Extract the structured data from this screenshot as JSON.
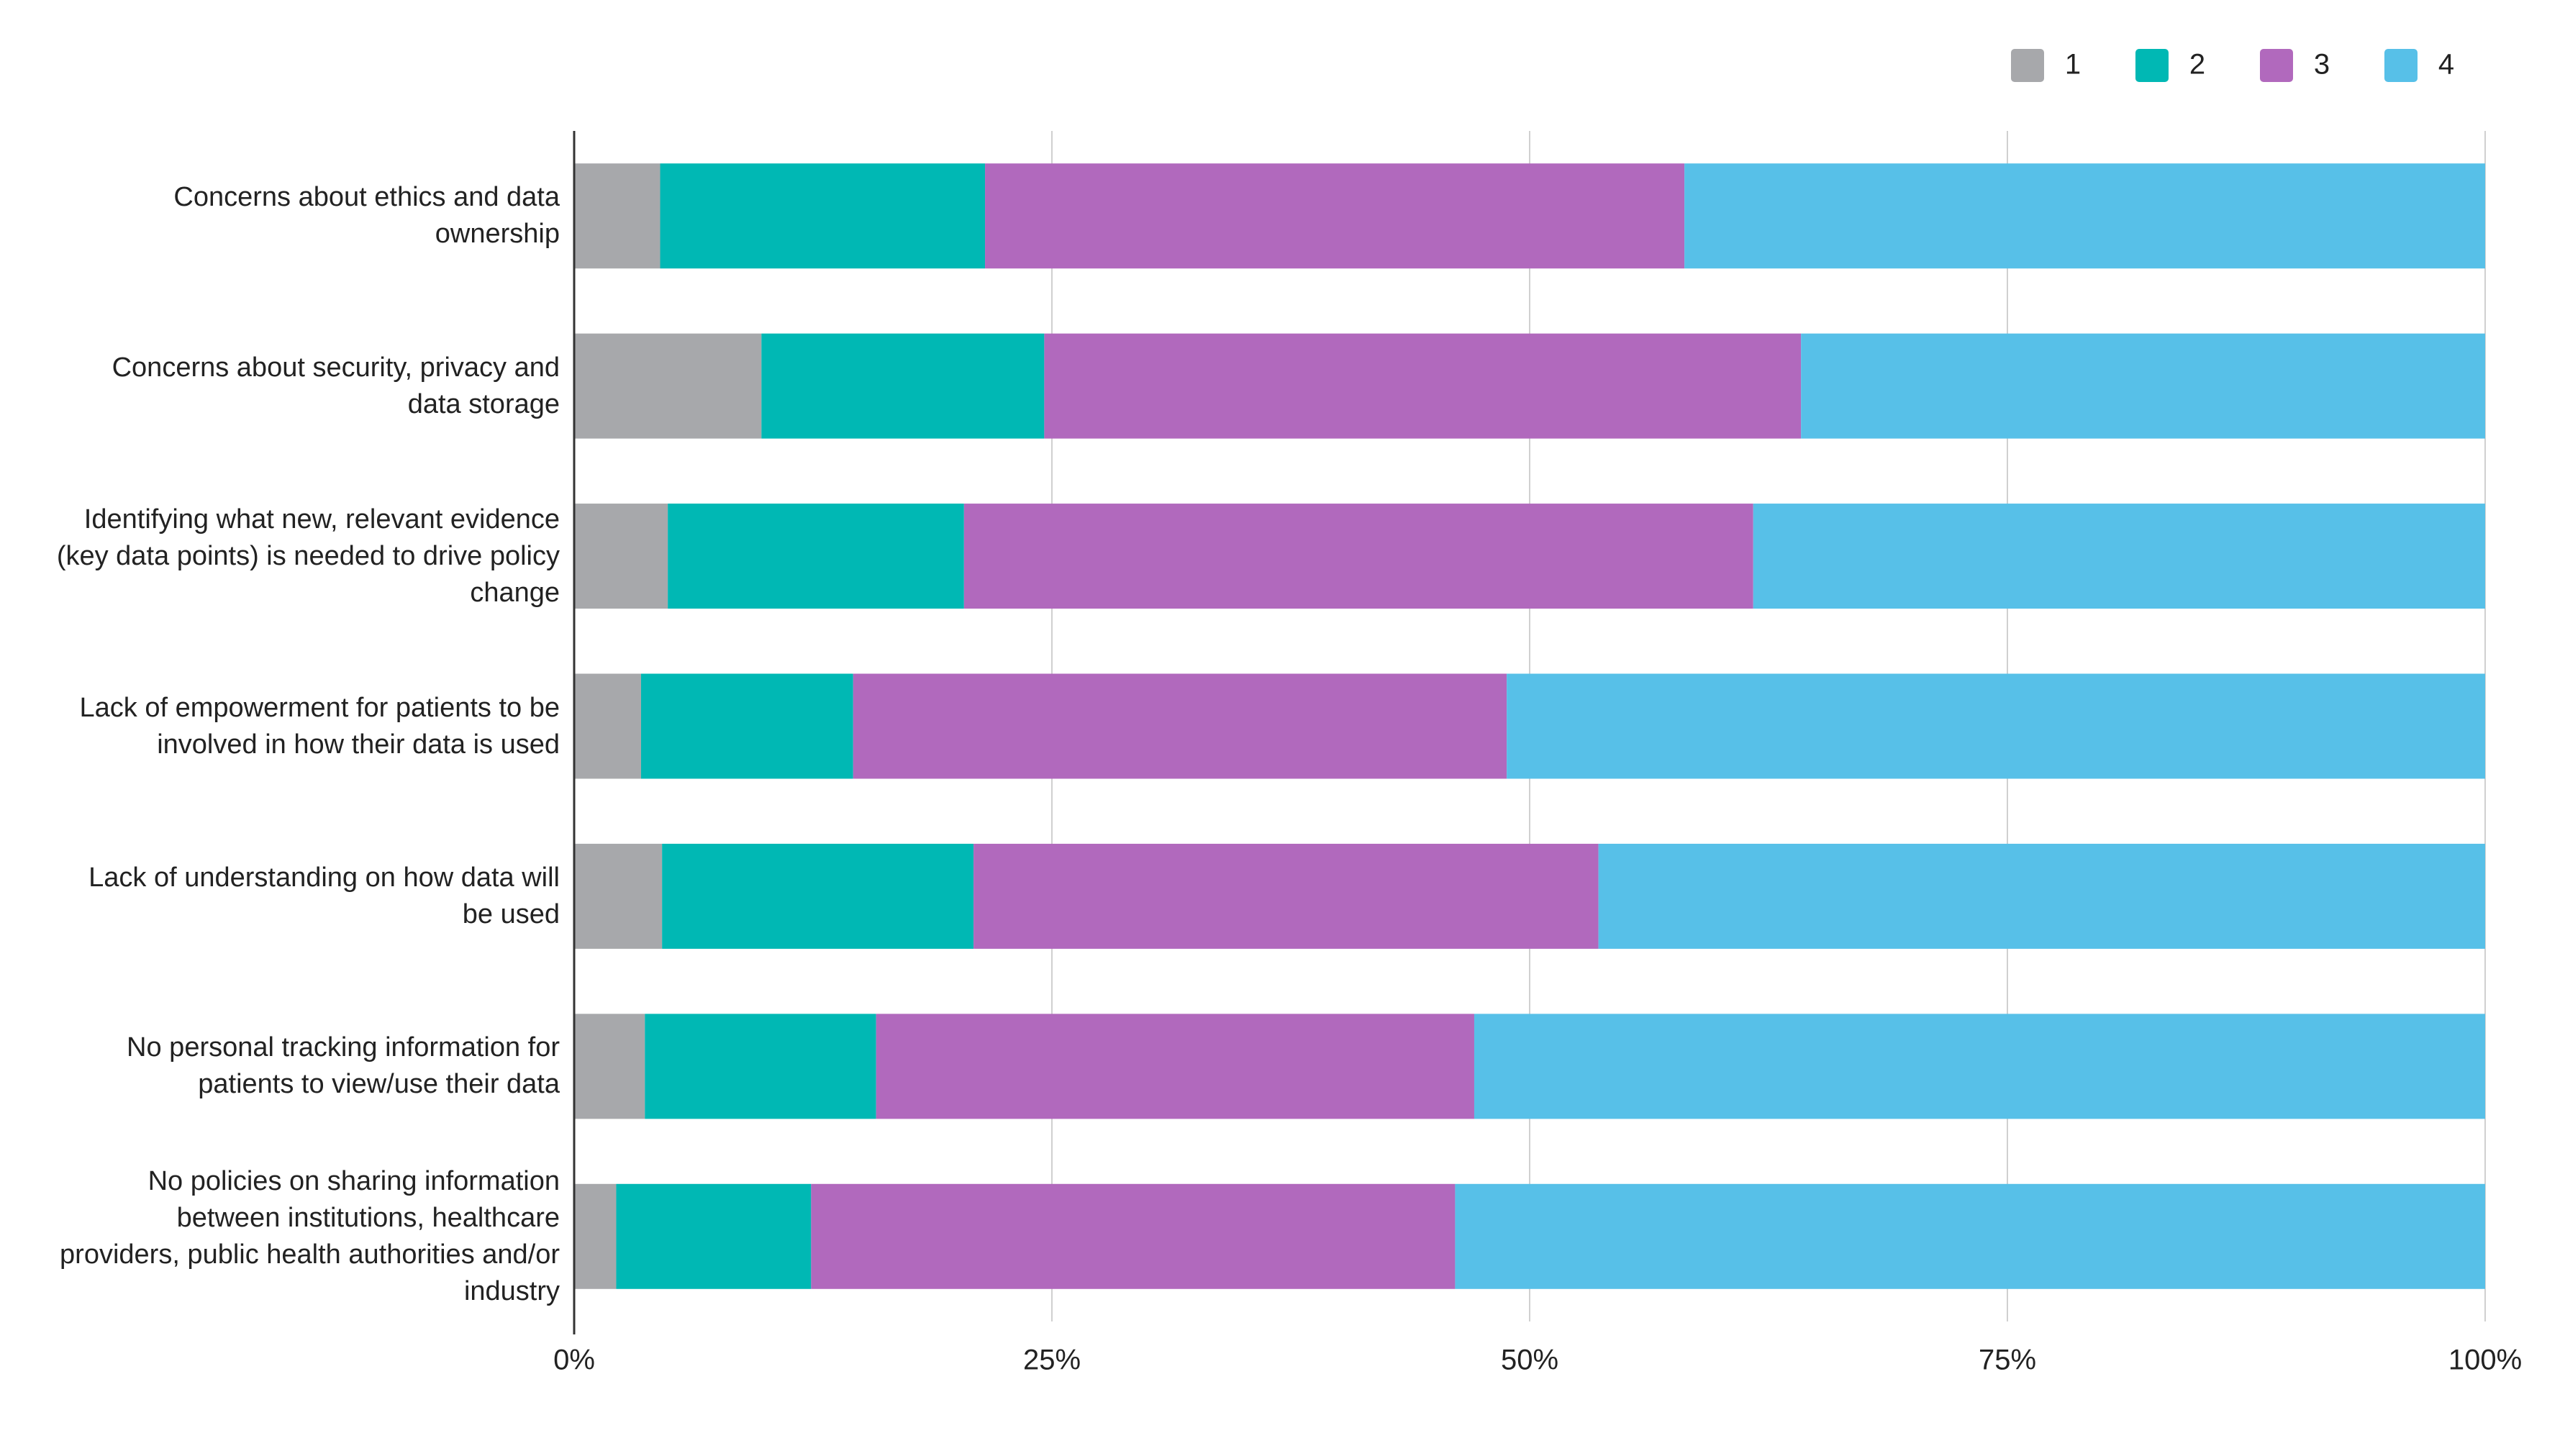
{
  "chart_data": {
    "type": "stacked-bar",
    "orientation": "horizontal",
    "categories": [
      "Concerns about ethics and data ownership",
      "Concerns about security, privacy and data storage",
      "Identifying what new, relevant evidence (key data points) is needed to drive policy change",
      "Lack of empowerment for patients to be involved in how their data is used",
      "Lack of understanding on how data will be used",
      "No personal tracking information for patients to view/use their data",
      "No policies on sharing information between institutions, healthcare providers, public health authorities and/or industry"
    ],
    "series": [
      {
        "name": "1",
        "color": "#a7a8ab",
        "values": [
          4.5,
          9.8,
          4.9,
          3.5,
          4.6,
          3.7,
          2.2
        ]
      },
      {
        "name": "2",
        "color": "#00b8b4",
        "values": [
          17.0,
          14.8,
          15.5,
          11.1,
          16.3,
          12.1,
          10.2
        ]
      },
      {
        "name": "3",
        "color": "#b169bd",
        "values": [
          36.6,
          39.6,
          41.3,
          34.2,
          32.7,
          31.3,
          33.7
        ]
      },
      {
        "name": "4",
        "color": "#57c0e8",
        "values": [
          41.9,
          35.8,
          38.3,
          51.2,
          46.4,
          52.9,
          53.9
        ]
      }
    ],
    "xlim": [
      0,
      100
    ],
    "xticks": [
      {
        "value": 0,
        "label": "0%"
      },
      {
        "value": 25,
        "label": "25%"
      },
      {
        "value": 50,
        "label": "50%"
      },
      {
        "value": 75,
        "label": "75%"
      },
      {
        "value": 100,
        "label": "100%"
      }
    ],
    "grid": true,
    "legend": "top-right"
  }
}
